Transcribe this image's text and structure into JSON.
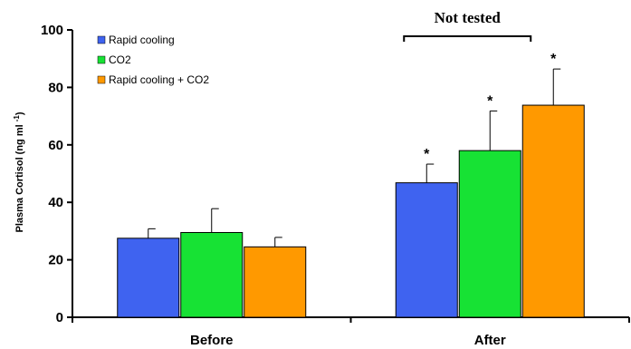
{
  "chart_data": {
    "type": "bar",
    "title": "",
    "xlabel": "",
    "ylabel": "Plasma Cortisol (ng ml",
    "ylabel_superscript": "-1",
    "ylabel_close": ")",
    "ylim": [
      0,
      100
    ],
    "yticks": [
      0,
      20,
      40,
      60,
      80,
      100
    ],
    "ytick_labels": [
      "0",
      "20",
      "40",
      "60",
      "80",
      "100"
    ],
    "grid": false,
    "legend_position": "top-left",
    "categories": [
      "Before",
      "After"
    ],
    "series": [
      {
        "name": "Rapid cooling",
        "color": "#3f63f0",
        "values": [
          27.5,
          46.8
        ],
        "errors": [
          3.3,
          6.5
        ],
        "significant": [
          false,
          true
        ]
      },
      {
        "name": "CO2",
        "color": "#17e234",
        "values": [
          29.5,
          58.0
        ],
        "errors": [
          8.3,
          13.8
        ],
        "significant": [
          false,
          true
        ]
      },
      {
        "name": "Rapid cooling + CO2",
        "color": "#ff9900",
        "values": [
          24.5,
          73.8
        ],
        "errors": [
          3.3,
          12.6
        ],
        "significant": [
          false,
          true
        ]
      }
    ],
    "significance_marker": "*",
    "annotations": [
      {
        "text": "Not tested",
        "category": "After",
        "bracket": true
      }
    ]
  }
}
